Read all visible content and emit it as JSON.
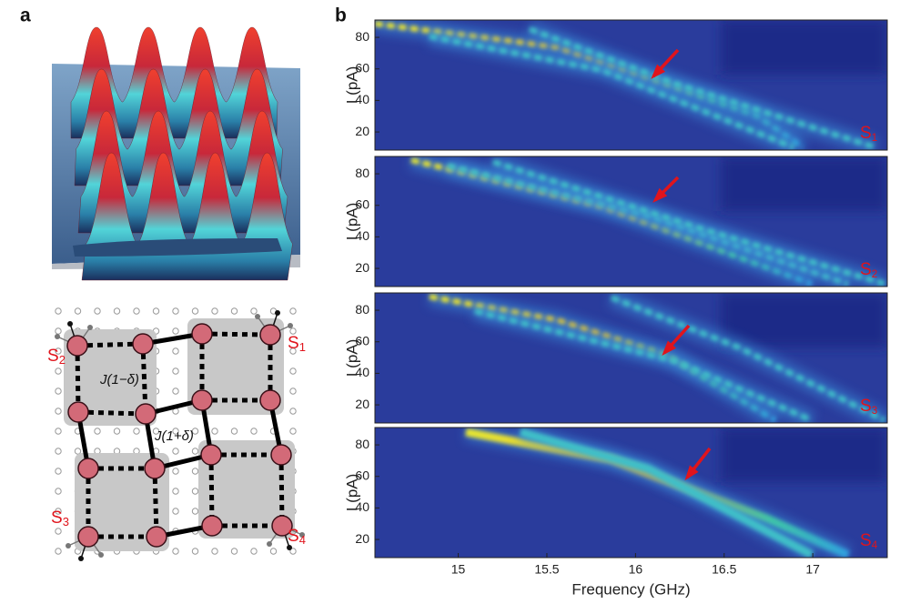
{
  "panel_a": {
    "label": "a",
    "lattice": {
      "hopping_weak": "J(1−δ)",
      "hopping_strong": "J(1+δ)",
      "sites": [
        {
          "letter": "S",
          "index": "1"
        },
        {
          "letter": "S",
          "index": "2"
        },
        {
          "letter": "S",
          "index": "3"
        },
        {
          "letter": "S",
          "index": "4"
        }
      ]
    }
  },
  "panel_b": {
    "label": "b",
    "x_label": "Frequency (GHz)",
    "y_label": "I (pA)",
    "xlim": [
      14.53,
      17.42
    ],
    "xticks": [
      15,
      15.5,
      16,
      16.5,
      17
    ],
    "ylim": [
      8.5,
      91
    ],
    "yticks": [
      20,
      40,
      60,
      80
    ],
    "maps": [
      {
        "letter": "S",
        "index": "1"
      },
      {
        "letter": "S",
        "index": "2"
      },
      {
        "letter": "S",
        "index": "3"
      },
      {
        "letter": "S",
        "index": "4"
      }
    ]
  }
}
